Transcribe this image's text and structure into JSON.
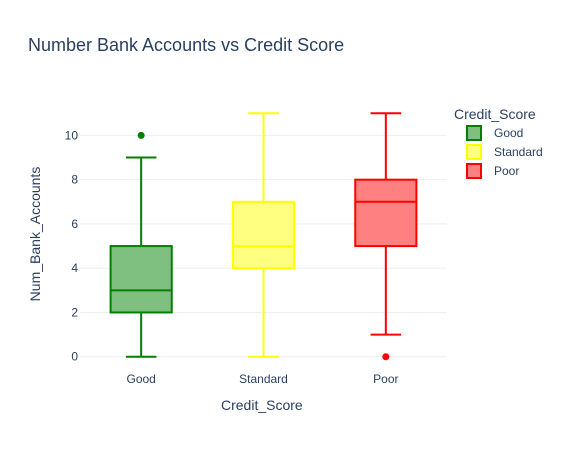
{
  "chart_data": {
    "type": "box",
    "title": "Number Bank Accounts vs Credit Score",
    "xlabel": "Credit_Score",
    "ylabel": "Num_Bank_Accounts",
    "categories": [
      "Good",
      "Standard",
      "Poor"
    ],
    "ylim": [
      -0.6,
      11.6
    ],
    "yticks": [
      0,
      2,
      4,
      6,
      8,
      10
    ],
    "grid": true,
    "legend": {
      "title": "Credit_Score",
      "placement": "top-right",
      "entries": [
        "Good",
        "Standard",
        "Poor"
      ]
    },
    "series": [
      {
        "name": "Good",
        "color": "#008000",
        "fill": "#7fbf7f",
        "min": 0,
        "q1": 2,
        "median": 3,
        "q3": 5,
        "max": 9,
        "outliers": [
          10
        ]
      },
      {
        "name": "Standard",
        "color": "#ffff00",
        "fill": "#ffff80",
        "min": 0,
        "q1": 4,
        "median": 5,
        "q3": 7,
        "max": 11,
        "outliers": []
      },
      {
        "name": "Poor",
        "color": "#ff0000",
        "fill": "#ff8080",
        "min": 1,
        "q1": 5,
        "median": 7,
        "q3": 8,
        "max": 11,
        "outliers": [
          0
        ]
      }
    ]
  }
}
